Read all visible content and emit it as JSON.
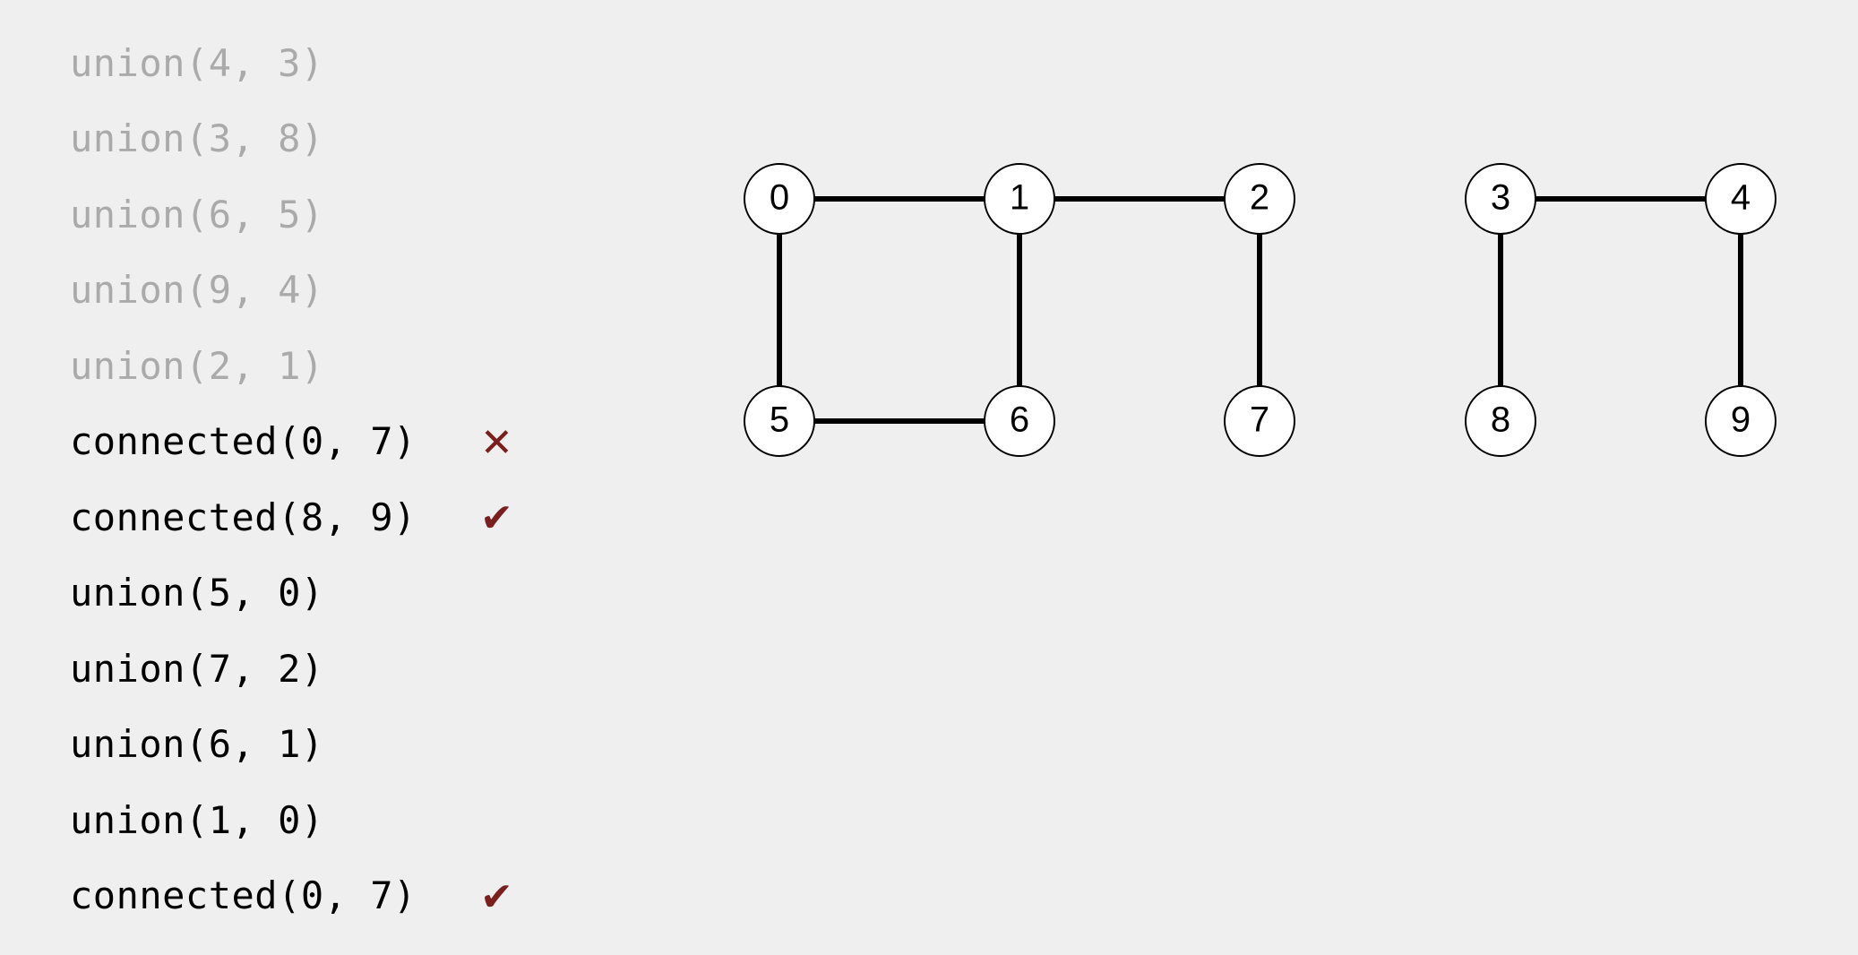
{
  "operations": [
    {
      "text": "union(4, 3)",
      "state": "faded",
      "mark": ""
    },
    {
      "text": "union(3, 8)",
      "state": "faded",
      "mark": ""
    },
    {
      "text": "union(6, 5)",
      "state": "faded",
      "mark": ""
    },
    {
      "text": "union(9, 4)",
      "state": "faded",
      "mark": ""
    },
    {
      "text": "union(2, 1)",
      "state": "faded",
      "mark": ""
    },
    {
      "text": "connected(0, 7)",
      "state": "active",
      "mark": "✕"
    },
    {
      "text": "connected(8, 9)",
      "state": "active",
      "mark": "✔"
    },
    {
      "text": "union(5, 0)",
      "state": "active",
      "mark": ""
    },
    {
      "text": "union(7, 2)",
      "state": "active",
      "mark": ""
    },
    {
      "text": "union(6, 1)",
      "state": "active",
      "mark": ""
    },
    {
      "text": "union(1, 0)",
      "state": "active",
      "mark": ""
    },
    {
      "text": "connected(0, 7)",
      "state": "active",
      "mark": "✔"
    }
  ],
  "graph": {
    "nodes": [
      {
        "id": 0,
        "label": "0"
      },
      {
        "id": 1,
        "label": "1"
      },
      {
        "id": 2,
        "label": "2"
      },
      {
        "id": 3,
        "label": "3"
      },
      {
        "id": 4,
        "label": "4"
      },
      {
        "id": 5,
        "label": "5"
      },
      {
        "id": 6,
        "label": "6"
      },
      {
        "id": 7,
        "label": "7"
      },
      {
        "id": 8,
        "label": "8"
      },
      {
        "id": 9,
        "label": "9"
      }
    ],
    "edges": [
      [
        0,
        1
      ],
      [
        1,
        2
      ],
      [
        3,
        4
      ],
      [
        0,
        5
      ],
      [
        1,
        6
      ],
      [
        2,
        7
      ],
      [
        3,
        8
      ],
      [
        4,
        9
      ],
      [
        5,
        6
      ]
    ]
  },
  "colors": {
    "background": "#efefef",
    "faded_text": "#aaaaaa",
    "active_text": "#000000",
    "mark": "#7a1e1e",
    "node_fill": "#ffffff",
    "stroke": "#000000"
  }
}
